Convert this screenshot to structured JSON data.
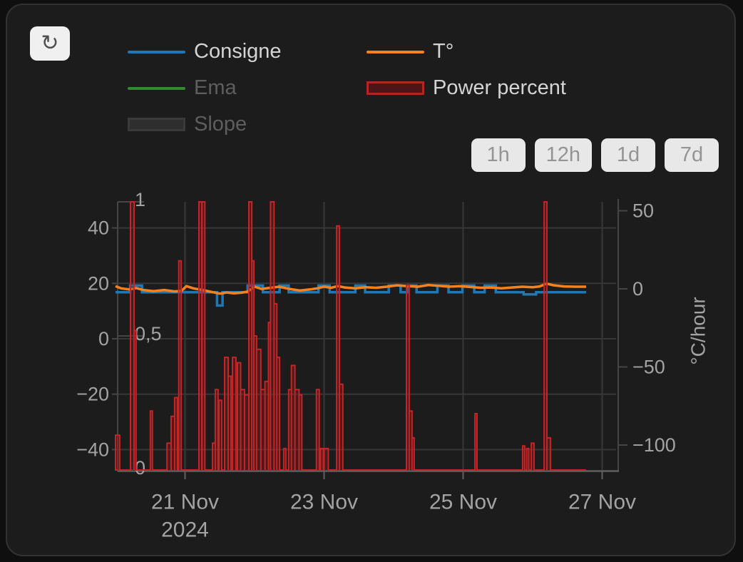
{
  "toolbar": {
    "reload_icon": "↻"
  },
  "legend": {
    "items": [
      {
        "label": "Consigne",
        "type": "line",
        "color": "#1f77b4",
        "dimmed": false
      },
      {
        "label": "Ema",
        "type": "line",
        "color": "#2e8b2e",
        "dimmed": true
      },
      {
        "label": "Slope",
        "type": "box",
        "color": "#2e2e2e",
        "border": "#3a3a3a",
        "dimmed": true
      },
      {
        "label": "T°",
        "type": "line",
        "color": "#f6821f",
        "dimmed": false
      },
      {
        "label": "Power percent",
        "type": "box",
        "color": "#4d1518",
        "border": "#b32424",
        "dimmed": false
      }
    ]
  },
  "range_buttons": [
    "1h",
    "12h",
    "1d",
    "7d"
  ],
  "colors": {
    "background": "#0f0f0f",
    "card": "#1c1c1c",
    "grid": "#373737",
    "axis_line": "#454545",
    "x_axis_line": "#5f5f5f",
    "tick_text": "#a3a3a3",
    "legend_text": "#d4d4d4",
    "legend_text_dim": "#5e5e5e",
    "consigne": "#1f77b4",
    "temperature": "#f6821f",
    "power_stroke": "#c62426",
    "power_fill": "rgba(158,28,28,0.32)"
  },
  "chart_data": {
    "type": "mixed",
    "x_axis": {
      "unit": "days since 2024-11-20 00:00",
      "domain_days": [
        0,
        7.2
      ],
      "ticks": [
        {
          "t": 1,
          "label": "21 Nov"
        },
        {
          "t": 3,
          "label": "23 Nov"
        },
        {
          "t": 5,
          "label": "25 Nov"
        },
        {
          "t": 7,
          "label": "27 Nov"
        }
      ],
      "year_label": {
        "t": 1,
        "label": "2024"
      }
    },
    "left_axis": {
      "ticks": [
        {
          "v": 40,
          "label": "40"
        },
        {
          "v": 20,
          "label": "20"
        },
        {
          "v": 0,
          "label": "0"
        },
        {
          "v": -20,
          "label": "−20"
        },
        {
          "v": -40,
          "label": "−40"
        }
      ],
      "range": [
        -48,
        49
      ]
    },
    "inner_axis": {
      "ticks": [
        {
          "v": 1,
          "label": "1"
        },
        {
          "v": 0.5,
          "label": "0,5"
        },
        {
          "v": 0,
          "label": "0"
        }
      ],
      "range": [
        0,
        1
      ]
    },
    "right_axis": {
      "title": "°C/hour",
      "ticks": [
        {
          "v": 50,
          "label": "50"
        },
        {
          "v": 0,
          "label": "0"
        },
        {
          "v": -50,
          "label": "−50"
        },
        {
          "v": -100,
          "label": "−100"
        }
      ],
      "range": [
        -120,
        57
      ]
    },
    "series": {
      "consigne": {
        "name": "Consigne",
        "axis": "left",
        "shape": "step",
        "segments": [
          [
            0,
            0.21,
            16.8
          ],
          [
            0.21,
            0.38,
            19.2
          ],
          [
            0.38,
            1.46,
            16.8
          ],
          [
            1.46,
            1.54,
            12.0
          ],
          [
            1.54,
            1.9,
            16.8
          ],
          [
            1.9,
            2.12,
            19.2
          ],
          [
            2.12,
            2.36,
            16.8
          ],
          [
            2.36,
            2.49,
            19.2
          ],
          [
            2.49,
            2.92,
            16.8
          ],
          [
            2.92,
            3.08,
            19.2
          ],
          [
            3.08,
            3.45,
            16.8
          ],
          [
            3.45,
            3.59,
            19.2
          ],
          [
            3.59,
            3.93,
            16.8
          ],
          [
            3.93,
            4.1,
            19.2
          ],
          [
            4.1,
            4.21,
            16.8
          ],
          [
            4.21,
            4.33,
            19.2
          ],
          [
            4.33,
            4.63,
            16.8
          ],
          [
            4.63,
            4.79,
            19.2
          ],
          [
            4.79,
            4.99,
            16.8
          ],
          [
            4.99,
            5.16,
            19.2
          ],
          [
            5.16,
            5.31,
            16.8
          ],
          [
            5.31,
            5.47,
            19.2
          ],
          [
            5.47,
            5.87,
            16.8
          ],
          [
            5.87,
            6.05,
            16.0
          ],
          [
            6.05,
            6.77,
            16.8
          ]
        ]
      },
      "temperature": {
        "name": "T°",
        "axis": "left",
        "shape": "line",
        "points": [
          [
            0,
            19.0
          ],
          [
            0.08,
            18.2
          ],
          [
            0.2,
            17.8
          ],
          [
            0.3,
            18.3
          ],
          [
            0.4,
            17.6
          ],
          [
            0.55,
            17.2
          ],
          [
            0.7,
            17.6
          ],
          [
            0.85,
            17.1
          ],
          [
            0.95,
            17.3
          ],
          [
            1.02,
            19.0
          ],
          [
            1.12,
            18.2
          ],
          [
            1.25,
            17.6
          ],
          [
            1.4,
            16.8
          ],
          [
            1.5,
            16.3
          ],
          [
            1.6,
            16.7
          ],
          [
            1.7,
            16.4
          ],
          [
            1.8,
            16.6
          ],
          [
            1.9,
            17.0
          ],
          [
            2.0,
            18.8
          ],
          [
            2.1,
            18.0
          ],
          [
            2.2,
            18.3
          ],
          [
            2.35,
            18.8
          ],
          [
            2.5,
            18.0
          ],
          [
            2.65,
            17.4
          ],
          [
            2.8,
            17.8
          ],
          [
            2.9,
            18.2
          ],
          [
            3.0,
            18.8
          ],
          [
            3.1,
            18.4
          ],
          [
            3.2,
            19.0
          ],
          [
            3.3,
            18.5
          ],
          [
            3.45,
            18.2
          ],
          [
            3.6,
            18.6
          ],
          [
            3.75,
            18.4
          ],
          [
            3.9,
            18.8
          ],
          [
            4.05,
            19.3
          ],
          [
            4.2,
            19.0
          ],
          [
            4.35,
            18.8
          ],
          [
            4.5,
            19.4
          ],
          [
            4.65,
            19.1
          ],
          [
            4.8,
            18.8
          ],
          [
            4.95,
            19.0
          ],
          [
            5.1,
            18.7
          ],
          [
            5.25,
            18.4
          ],
          [
            5.4,
            18.5
          ],
          [
            5.55,
            18.2
          ],
          [
            5.7,
            18.5
          ],
          [
            5.85,
            18.8
          ],
          [
            6.0,
            18.6
          ],
          [
            6.1,
            18.9
          ],
          [
            6.2,
            19.9
          ],
          [
            6.3,
            19.3
          ],
          [
            6.45,
            18.9
          ],
          [
            6.6,
            18.8
          ],
          [
            6.77,
            18.8
          ]
        ]
      },
      "power_percent": {
        "name": "Power percent",
        "axis": "inner",
        "shape": "bars",
        "baseline_end": 6.77,
        "bars": [
          [
            0,
            0.06,
            0.13
          ],
          [
            0.215,
            0.267,
            1
          ],
          [
            0.267,
            0.295,
            0.52
          ],
          [
            0.5,
            0.53,
            0.22
          ],
          [
            0.74,
            0.8,
            0.1
          ],
          [
            0.8,
            0.85,
            0.2
          ],
          [
            0.85,
            0.89,
            0.27
          ],
          [
            0.91,
            0.945,
            0.78
          ],
          [
            1.2,
            1.24,
            1
          ],
          [
            1.245,
            1.285,
            1
          ],
          [
            1.395,
            1.435,
            0.1
          ],
          [
            1.435,
            1.475,
            0.3
          ],
          [
            1.487,
            1.527,
            0.26
          ],
          [
            1.569,
            1.62,
            0.42
          ],
          [
            1.62,
            1.66,
            0.35
          ],
          [
            1.682,
            1.732,
            0.42
          ],
          [
            1.754,
            1.8,
            0.4
          ],
          [
            1.8,
            1.855,
            0.3
          ],
          [
            1.855,
            1.918,
            0.28
          ],
          [
            1.918,
            1.96,
            1
          ],
          [
            1.96,
            1.99,
            0.78
          ],
          [
            1.99,
            2.03,
            0.5
          ],
          [
            2.03,
            2.09,
            0.45
          ],
          [
            2.09,
            2.15,
            0.3
          ],
          [
            2.15,
            2.2,
            0.33
          ],
          [
            2.2,
            2.23,
            0.55
          ],
          [
            2.23,
            2.28,
            1
          ],
          [
            2.28,
            2.32,
            0.62
          ],
          [
            2.32,
            2.36,
            0.42
          ],
          [
            2.42,
            2.45,
            0.08
          ],
          [
            2.49,
            2.53,
            0.3
          ],
          [
            2.53,
            2.58,
            0.39
          ],
          [
            2.58,
            2.64,
            0.3
          ],
          [
            2.64,
            2.68,
            0.28
          ],
          [
            2.89,
            2.93,
            0.3
          ],
          [
            2.95,
            2.99,
            0.08
          ],
          [
            3.0,
            3.06,
            0.08
          ],
          [
            3.18,
            3.22,
            0.91
          ],
          [
            3.22,
            3.27,
            0.32
          ],
          [
            4.185,
            4.225,
            0.69
          ],
          [
            4.225,
            4.265,
            0.22
          ],
          [
            4.265,
            4.295,
            0.12
          ],
          [
            5.17,
            5.2,
            0.21
          ],
          [
            5.855,
            5.885,
            0.09
          ],
          [
            5.915,
            5.945,
            0.08
          ],
          [
            5.98,
            6.02,
            0.1
          ],
          [
            6.165,
            6.205,
            1
          ],
          [
            6.205,
            6.255,
            0.12
          ]
        ]
      },
      "hidden": [
        {
          "name": "Ema"
        },
        {
          "name": "Slope"
        }
      ]
    }
  }
}
